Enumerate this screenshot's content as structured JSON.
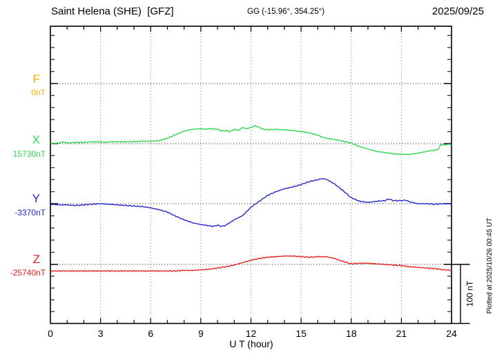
{
  "header": {
    "station_title": "Saint Helena (SHE)  [GFZ]",
    "coordinates": "GG (-15.96°, 354.25°)",
    "date": "2025/09/25"
  },
  "channels": {
    "F": {
      "label": "F",
      "base_label": "0nT",
      "color": "#FFAA00"
    },
    "X": {
      "label": "X",
      "base_label": "15730nT",
      "color": "#2FD64F"
    },
    "Y": {
      "label": "Y",
      "base_label": "-3370nT",
      "color": "#2323CE"
    },
    "Z": {
      "label": "Z",
      "base_label": "-25740nT",
      "color": "#E62020"
    }
  },
  "axes": {
    "x_label": "U T (hour)",
    "x_ticks": [
      "0",
      "3",
      "6",
      "9",
      "12",
      "15",
      "18",
      "21",
      "24"
    ]
  },
  "scale_bar": {
    "label": "100 nT",
    "nt": 100
  },
  "footer_note": "Plotted at 2025/10/26 00:45 UT",
  "chart_data": {
    "type": "line",
    "title": "Saint Helena (SHE) [GFZ] magnetogram for 2025/09/25",
    "xlabel": "U T (hour)",
    "ylabel": "",
    "x_range": [
      0,
      24
    ],
    "x_tick_hours": [
      0,
      3,
      6,
      9,
      12,
      15,
      18,
      21,
      24
    ],
    "x_minor_tick_hours": 1,
    "x_gridlines_hours": [
      3,
      6,
      9,
      12,
      15,
      18,
      21
    ],
    "grid": "dotted",
    "scale_nt_per_division": 100,
    "minor_tick_nt": 20,
    "series": [
      {
        "name": "F",
        "color": "#FFAA00",
        "baseline_value_nT": 0,
        "baseline_label": "0nT",
        "x": [],
        "dev_nT": []
      },
      {
        "name": "X",
        "color": "#2FD64F",
        "baseline_value_nT": 15730,
        "baseline_label": "15730nT",
        "x": [
          0,
          0.5,
          0.75,
          1,
          1.5,
          2,
          2.5,
          3,
          3.25,
          3.5,
          4,
          4.5,
          5,
          5.5,
          6,
          6.5,
          7,
          7.5,
          8,
          8.5,
          9,
          9.25,
          9.5,
          10,
          10.25,
          10.5,
          10.75,
          11,
          11.25,
          11.5,
          11.75,
          12,
          12.25,
          12.5,
          12.75,
          13,
          13.5,
          14,
          14.5,
          15,
          15.5,
          16,
          16.25,
          16.5,
          17,
          17.5,
          18,
          18.5,
          19,
          19.5,
          20,
          20.5,
          21,
          21.5,
          22,
          22.5,
          23,
          23.2,
          23.35,
          23.5,
          24
        ],
        "dev_nT": [
          0,
          1,
          3,
          1,
          2,
          2,
          3,
          3,
          2,
          3,
          3,
          3,
          3,
          4,
          4,
          5,
          9,
          15,
          21,
          24,
          25,
          24,
          25,
          24,
          21,
          22,
          20,
          24,
          22,
          27,
          25,
          27,
          30,
          27,
          24,
          23,
          24,
          23,
          22,
          20,
          18,
          14,
          11,
          9,
          7,
          4,
          1,
          -5,
          -9,
          -13,
          -15,
          -17,
          -18,
          -18,
          -16,
          -13,
          -11,
          -10,
          -2,
          -2,
          -1
        ]
      },
      {
        "name": "Y",
        "color": "#2323CE",
        "baseline_value_nT": -3370,
        "baseline_label": "-3370nT",
        "x": [
          0,
          0.5,
          1,
          1.5,
          2,
          2.5,
          3,
          3.5,
          4,
          4.5,
          5,
          5.5,
          6,
          6.5,
          7,
          7.5,
          8,
          8.5,
          9,
          9.5,
          9.75,
          10,
          10.25,
          10.5,
          11,
          11.5,
          12,
          12.5,
          13,
          13.5,
          14,
          14.5,
          15,
          15.5,
          16,
          16.25,
          16.5,
          17,
          17.5,
          18,
          18.5,
          19,
          19.5,
          20,
          20.25,
          20.5,
          21,
          21.25,
          21.5,
          22,
          22.5,
          23,
          23.5,
          24
        ],
        "dev_nT": [
          -1,
          -2,
          -2,
          -3,
          -2,
          -1,
          0,
          -1,
          -2,
          -3,
          -4,
          -5,
          -7,
          -10,
          -14,
          -21,
          -27,
          -32,
          -35,
          -37,
          -38,
          -36,
          -38,
          -36,
          -27,
          -20,
          -6,
          4,
          14,
          20,
          25,
          28,
          32,
          37,
          40,
          42,
          41,
          33,
          22,
          10,
          4,
          2,
          4,
          5,
          8,
          5,
          5,
          6,
          3,
          0,
          0,
          -1,
          0,
          0
        ]
      },
      {
        "name": "Z",
        "color": "#E62020",
        "baseline_value_nT": -25740,
        "baseline_label": "-25740nT",
        "x": [
          0,
          1,
          2,
          3,
          4,
          5,
          6,
          7,
          7.5,
          8,
          8.5,
          9,
          9.5,
          10,
          10.5,
          11,
          11.5,
          12,
          12.5,
          13,
          13.5,
          14,
          14.5,
          15,
          15.5,
          16,
          16.5,
          17,
          17.5,
          18,
          18.5,
          19,
          19.5,
          20,
          20.5,
          21,
          21.5,
          22,
          22.5,
          23,
          23.5,
          24
        ],
        "dev_nT": [
          -11,
          -11,
          -11,
          -11,
          -11,
          -11,
          -11,
          -11,
          -11,
          -10,
          -10,
          -9,
          -8,
          -6,
          -4,
          -1,
          3,
          7,
          10,
          12,
          13,
          14,
          14,
          13,
          12,
          13,
          13,
          10,
          5,
          1,
          2,
          2,
          1,
          0,
          -1,
          -2,
          -4,
          -5,
          -6,
          -7,
          -9,
          -10
        ]
      }
    ]
  }
}
